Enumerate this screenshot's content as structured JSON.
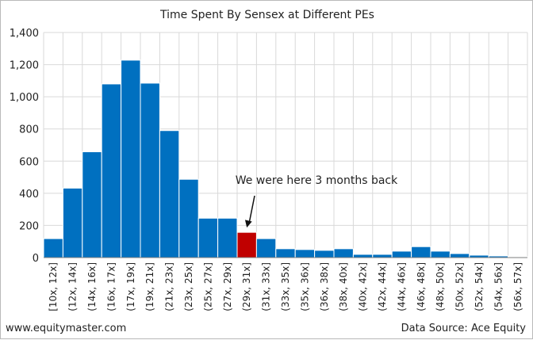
{
  "chart_data": {
    "type": "bar",
    "title": "Time Spent By Sensex at Different PEs",
    "xlabel": "",
    "ylabel": "",
    "ylim": [
      0,
      1400
    ],
    "yticks": [
      0,
      200,
      400,
      600,
      800,
      1000,
      1200,
      1400
    ],
    "ytick_labels": [
      "0",
      "200",
      "400",
      "600",
      "800",
      "1,000",
      "1,200",
      "1,400"
    ],
    "grid": true,
    "categories": [
      "[10x, 12x]",
      "(12x, 14x]",
      "(14x, 16x]",
      "(16x, 17x]",
      "(17x, 19x]",
      "(19x, 21x]",
      "(21x, 23x]",
      "(23x, 25x]",
      "(25x, 27x]",
      "(27x, 29x]",
      "(29x, 31x]",
      "(31x, 33x]",
      "(33x, 35x]",
      "(35x, 36x]",
      "(36x, 38x]",
      "(38x, 40x]",
      "(40x, 42x]",
      "(42x, 44x]",
      "(44x, 46x]",
      "(46x, 48x]",
      "(48x, 50x]",
      "(50x, 52x]",
      "(52x, 54x]",
      "(54x, 56x]",
      "(56x, 57x]"
    ],
    "values": [
      118,
      432,
      658,
      1080,
      1228,
      1085,
      790,
      487,
      245,
      245,
      157,
      118,
      55,
      50,
      45,
      55,
      20,
      20,
      40,
      68,
      40,
      25,
      15,
      10,
      5
    ],
    "highlight_index": 10,
    "bar_color": "#0070c0",
    "highlight_color": "#c00000",
    "annotation": {
      "text": "We were here 3 months back",
      "target_index": 10
    }
  },
  "footer": {
    "left": "www.equitymaster.com",
    "right": "Data Source: Ace Equity"
  }
}
